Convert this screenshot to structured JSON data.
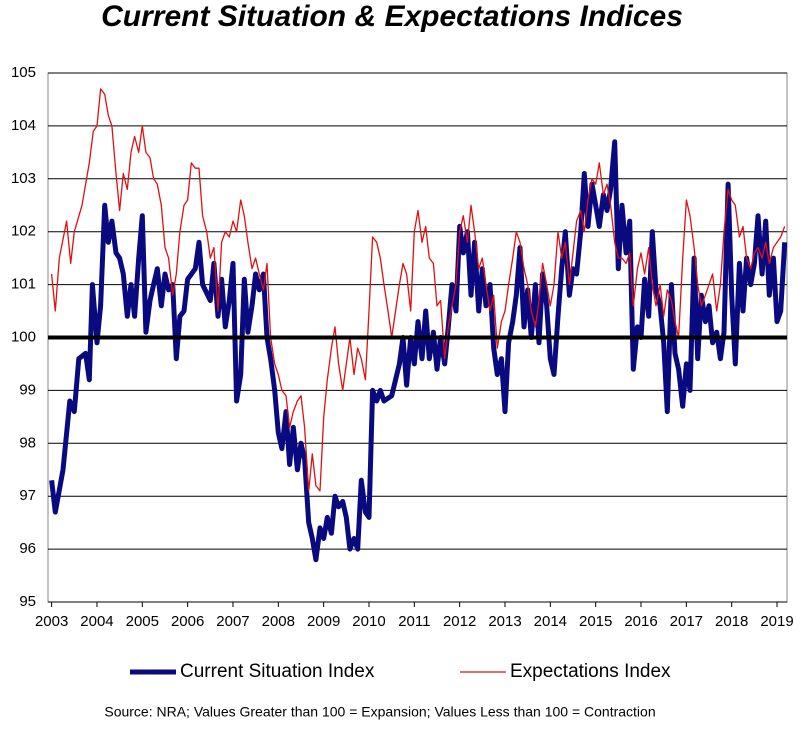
{
  "chart_data": {
    "type": "line",
    "title": "Current Situation & Expectations Indices",
    "source": "Source: NRA; Values Greater than 100 = Expansion; Values Less than 100 = Contraction",
    "xlim": [
      2002.92,
      2019.22
    ],
    "xticks": [
      2003,
      2004,
      2005,
      2006,
      2007,
      2008,
      2009,
      2010,
      2011,
      2012,
      2013,
      2014,
      2015,
      2016,
      2017,
      2018,
      2019
    ],
    "ylim": [
      95,
      105
    ],
    "yticks": [
      95,
      96,
      97,
      98,
      99,
      100,
      101,
      102,
      103,
      104,
      105
    ],
    "grid": true,
    "reference_line": 100,
    "legend": "bottom",
    "series": [
      {
        "name": "Current Situation Index",
        "color": "#0a0a80",
        "line_width": 5,
        "x": [
          2003.0,
          2003.08,
          2003.25,
          2003.4,
          2003.5,
          2003.6,
          2003.75,
          2003.83,
          2003.9,
          2004.0,
          2004.08,
          2004.17,
          2004.25,
          2004.33,
          2004.42,
          2004.5,
          2004.58,
          2004.67,
          2004.75,
          2004.83,
          2004.92,
          2005.0,
          2005.08,
          2005.17,
          2005.25,
          2005.33,
          2005.42,
          2005.5,
          2005.58,
          2005.67,
          2005.75,
          2005.83,
          2005.92,
          2006.0,
          2006.17,
          2006.25,
          2006.33,
          2006.5,
          2006.58,
          2006.67,
          2006.75,
          2006.83,
          2006.92,
          2007.0,
          2007.08,
          2007.17,
          2007.25,
          2007.33,
          2007.42,
          2007.5,
          2007.58,
          2007.67,
          2007.75,
          2007.83,
          2007.92,
          2008.0,
          2008.08,
          2008.17,
          2008.25,
          2008.33,
          2008.42,
          2008.5,
          2008.58,
          2008.67,
          2008.75,
          2008.83,
          2008.92,
          2009.0,
          2009.08,
          2009.17,
          2009.25,
          2009.33,
          2009.42,
          2009.5,
          2009.58,
          2009.67,
          2009.75,
          2009.83,
          2009.92,
          2010.0,
          2010.08,
          2010.17,
          2010.25,
          2010.33,
          2010.5,
          2010.67,
          2010.75,
          2010.83,
          2010.92,
          2011.0,
          2011.08,
          2011.17,
          2011.25,
          2011.33,
          2011.42,
          2011.5,
          2011.58,
          2011.67,
          2011.75,
          2011.83,
          2011.92,
          2012.0,
          2012.08,
          2012.17,
          2012.25,
          2012.33,
          2012.42,
          2012.5,
          2012.58,
          2012.67,
          2012.75,
          2012.83,
          2012.92,
          2013.0,
          2013.08,
          2013.17,
          2013.25,
          2013.33,
          2013.42,
          2013.5,
          2013.58,
          2013.67,
          2013.75,
          2013.83,
          2013.92,
          2014.0,
          2014.08,
          2014.17,
          2014.25,
          2014.33,
          2014.42,
          2014.5,
          2014.58,
          2014.67,
          2014.75,
          2014.83,
          2014.92,
          2015.0,
          2015.08,
          2015.17,
          2015.25,
          2015.33,
          2015.42,
          2015.5,
          2015.58,
          2015.67,
          2015.75,
          2015.83,
          2015.92,
          2016.0,
          2016.08,
          2016.17,
          2016.25,
          2016.33,
          2016.42,
          2016.5,
          2016.58,
          2016.67,
          2016.75,
          2016.83,
          2016.92,
          2017.0,
          2017.08,
          2017.17,
          2017.25,
          2017.33,
          2017.42,
          2017.5,
          2017.58,
          2017.67,
          2017.75,
          2017.83,
          2017.92,
          2018.0,
          2018.08,
          2018.17,
          2018.25,
          2018.33,
          2018.42,
          2018.5,
          2018.58,
          2018.67,
          2018.75,
          2018.83,
          2018.92,
          2019.0,
          2019.08,
          2019.17
        ],
        "values": [
          97.3,
          96.7,
          97.5,
          98.8,
          98.6,
          99.6,
          99.7,
          99.2,
          101.0,
          99.9,
          100.6,
          102.5,
          101.8,
          102.2,
          101.6,
          101.5,
          101.2,
          100.4,
          101.0,
          100.4,
          101.5,
          102.3,
          100.1,
          100.7,
          101.0,
          101.3,
          100.6,
          101.2,
          100.9,
          101.0,
          99.6,
          100.4,
          100.5,
          101.1,
          101.3,
          101.8,
          101.0,
          100.7,
          101.4,
          100.4,
          101.1,
          100.2,
          100.7,
          101.4,
          98.8,
          99.3,
          101.1,
          100.1,
          100.6,
          101.2,
          100.9,
          101.2,
          100.0,
          99.6,
          99.0,
          98.2,
          97.9,
          98.6,
          97.6,
          98.3,
          97.5,
          98.0,
          97.7,
          96.5,
          96.2,
          95.8,
          96.4,
          96.2,
          96.6,
          96.3,
          97.0,
          96.8,
          96.9,
          96.6,
          96.0,
          96.2,
          96.0,
          97.3,
          96.7,
          96.6,
          99.0,
          98.8,
          99.0,
          98.8,
          98.9,
          99.5,
          100.0,
          99.1,
          100.0,
          99.5,
          100.3,
          99.6,
          100.5,
          99.6,
          100.1,
          99.4,
          100.0,
          99.5,
          100.2,
          101.0,
          100.5,
          102.1,
          101.6,
          102.0,
          100.8,
          101.8,
          100.5,
          101.3,
          100.6,
          101.0,
          99.8,
          99.3,
          99.6,
          98.6,
          99.9,
          100.3,
          100.8,
          101.7,
          100.2,
          100.9,
          100.0,
          101.0,
          99.9,
          101.2,
          100.6,
          99.6,
          99.3,
          100.4,
          101.3,
          102.0,
          100.8,
          101.3,
          101.2,
          102.0,
          103.1,
          102.1,
          102.9,
          102.5,
          102.1,
          102.7,
          102.4,
          102.8,
          103.7,
          101.3,
          102.5,
          101.6,
          102.2,
          99.4,
          100.2,
          100.0,
          101.1,
          100.4,
          102.0,
          100.9,
          100.6,
          99.9,
          98.6,
          101.0,
          99.7,
          99.4,
          98.7,
          99.5,
          99.0,
          101.5,
          99.6,
          100.8,
          100.3,
          100.6,
          99.9,
          100.1,
          99.6,
          100.1,
          102.9,
          100.8,
          99.5,
          101.4,
          100.5,
          101.5,
          101.0,
          101.4,
          102.3,
          101.2,
          102.2,
          100.8,
          101.5,
          100.3,
          100.5,
          101.8
        ]
      },
      {
        "name": "Expectations Index",
        "color": "#e01010",
        "line_width": 1.3,
        "x": [
          2003.0,
          2003.08,
          2003.17,
          2003.33,
          2003.42,
          2003.5,
          2003.67,
          2003.83,
          2003.92,
          2004.0,
          2004.08,
          2004.17,
          2004.25,
          2004.33,
          2004.42,
          2004.5,
          2004.58,
          2004.67,
          2004.75,
          2004.83,
          2004.92,
          2005.0,
          2005.08,
          2005.17,
          2005.25,
          2005.33,
          2005.42,
          2005.5,
          2005.58,
          2005.67,
          2005.75,
          2005.83,
          2005.92,
          2006.0,
          2006.08,
          2006.17,
          2006.25,
          2006.33,
          2006.42,
          2006.5,
          2006.58,
          2006.67,
          2006.75,
          2006.83,
          2006.92,
          2007.0,
          2007.08,
          2007.17,
          2007.25,
          2007.33,
          2007.42,
          2007.5,
          2007.58,
          2007.67,
          2007.75,
          2007.83,
          2007.92,
          2008.0,
          2008.08,
          2008.17,
          2008.25,
          2008.33,
          2008.42,
          2008.5,
          2008.58,
          2008.67,
          2008.75,
          2008.83,
          2008.92,
          2009.0,
          2009.08,
          2009.17,
          2009.25,
          2009.33,
          2009.42,
          2009.5,
          2009.58,
          2009.67,
          2009.75,
          2009.83,
          2009.92,
          2010.0,
          2010.08,
          2010.17,
          2010.25,
          2010.33,
          2010.42,
          2010.5,
          2010.67,
          2010.75,
          2010.83,
          2010.92,
          2011.0,
          2011.08,
          2011.17,
          2011.25,
          2011.33,
          2011.42,
          2011.5,
          2011.58,
          2011.67,
          2011.75,
          2011.83,
          2011.92,
          2012.0,
          2012.08,
          2012.17,
          2012.25,
          2012.33,
          2012.42,
          2012.5,
          2012.58,
          2012.67,
          2012.75,
          2012.83,
          2012.92,
          2013.0,
          2013.08,
          2013.17,
          2013.25,
          2013.33,
          2013.42,
          2013.5,
          2013.58,
          2013.67,
          2013.75,
          2013.83,
          2013.92,
          2014.0,
          2014.08,
          2014.17,
          2014.25,
          2014.33,
          2014.42,
          2014.5,
          2014.58,
          2014.67,
          2014.75,
          2014.83,
          2014.92,
          2015.0,
          2015.08,
          2015.17,
          2015.25,
          2015.33,
          2015.42,
          2015.5,
          2015.58,
          2015.67,
          2015.75,
          2015.83,
          2015.92,
          2016.0,
          2016.08,
          2016.17,
          2016.25,
          2016.33,
          2016.42,
          2016.5,
          2016.58,
          2016.67,
          2016.75,
          2016.83,
          2016.92,
          2017.0,
          2017.08,
          2017.17,
          2017.25,
          2017.33,
          2017.42,
          2017.5,
          2017.58,
          2017.67,
          2017.75,
          2017.83,
          2017.92,
          2018.0,
          2018.08,
          2018.17,
          2018.25,
          2018.33,
          2018.42,
          2018.5,
          2018.58,
          2018.67,
          2018.75,
          2018.83,
          2018.92,
          2019.0,
          2019.08,
          2019.17
        ],
        "values": [
          101.2,
          100.5,
          101.5,
          102.2,
          101.4,
          102.0,
          102.5,
          103.3,
          103.9,
          104.0,
          104.7,
          104.6,
          104.2,
          104.0,
          103.1,
          102.4,
          103.1,
          102.8,
          103.5,
          103.8,
          103.5,
          104.0,
          103.5,
          103.4,
          103.0,
          102.9,
          102.5,
          101.7,
          101.5,
          100.8,
          101.2,
          102.0,
          102.5,
          102.6,
          103.3,
          103.2,
          103.2,
          102.3,
          102.0,
          101.5,
          101.7,
          100.5,
          101.8,
          102.0,
          101.9,
          102.2,
          102.0,
          102.6,
          102.3,
          101.8,
          101.3,
          101.5,
          101.2,
          100.9,
          101.4,
          100.0,
          99.5,
          99.3,
          99.0,
          98.9,
          98.3,
          98.6,
          98.8,
          98.9,
          98.3,
          97.1,
          97.8,
          97.2,
          97.1,
          98.5,
          99.2,
          99.8,
          100.2,
          99.5,
          99.0,
          99.5,
          100.0,
          99.3,
          99.8,
          99.6,
          99.2,
          100.5,
          101.9,
          101.8,
          101.5,
          101.0,
          100.5,
          100.0,
          101.0,
          101.4,
          101.2,
          100.5,
          102.0,
          102.4,
          101.8,
          102.1,
          101.5,
          101.4,
          100.6,
          100.7,
          99.6,
          100.2,
          100.6,
          101.0,
          102.0,
          102.3,
          101.8,
          102.5,
          102.0,
          101.3,
          101.5,
          101.0,
          100.5,
          100.8,
          99.8,
          100.3,
          100.5,
          101.0,
          101.5,
          102.0,
          101.8,
          101.3,
          101.0,
          100.5,
          100.2,
          100.7,
          101.4,
          101.0,
          100.6,
          101.0,
          102.0,
          101.5,
          101.8,
          101.0,
          101.6,
          102.2,
          102.4,
          102.0,
          102.6,
          103.0,
          102.9,
          103.3,
          102.7,
          102.9,
          102.5,
          101.8,
          101.5,
          101.5,
          101.4,
          101.6,
          100.6,
          101.3,
          101.6,
          101.2,
          101.7,
          101.0,
          100.6,
          101.0,
          100.4,
          100.9,
          100.7,
          100.3,
          100.0,
          101.5,
          102.6,
          102.3,
          101.7,
          101.0,
          100.6,
          100.8,
          101.0,
          101.2,
          100.5,
          101.0,
          102.0,
          102.8,
          102.6,
          102.5,
          101.9,
          102.1,
          101.5,
          101.3,
          101.6,
          101.7,
          101.5,
          101.8,
          101.4,
          101.7,
          101.8,
          101.9,
          102.1
        ]
      }
    ]
  }
}
